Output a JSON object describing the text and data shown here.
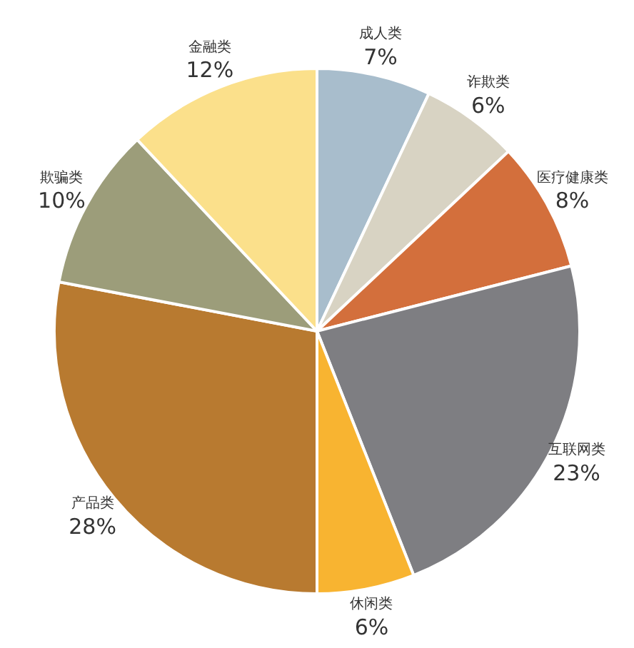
{
  "chart_data": {
    "type": "pie",
    "categories": [
      "成人类",
      "诈欺类",
      "医疗健康类",
      "互联网类",
      "休闲类",
      "产品类",
      "欺骗类",
      "金融类"
    ],
    "values": [
      7,
      6,
      8,
      23,
      6,
      28,
      10,
      12
    ],
    "value_labels": [
      "7%",
      "6%",
      "8%",
      "23%",
      "6%",
      "28%",
      "10%",
      "12%"
    ],
    "colors": [
      "#a8bdcc",
      "#d8d3c3",
      "#d36f3c",
      "#7e7e82",
      "#f8b431",
      "#b87a30",
      "#9c9d7a",
      "#fbe08b"
    ]
  }
}
